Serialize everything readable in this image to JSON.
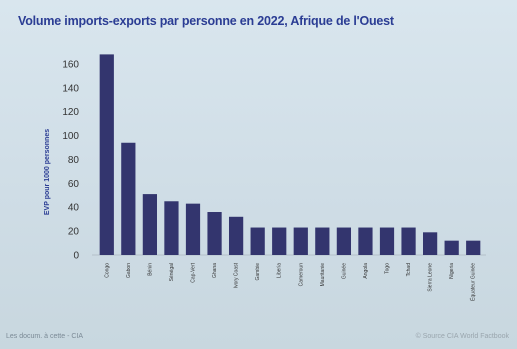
{
  "chart_data": {
    "type": "bar",
    "title": "Volume imports-exports par personne en 2022, Afrique de l'Ouest",
    "ylabel": "EVP pour 1000 personnes",
    "xlabel": "",
    "ylim": [
      0,
      170
    ],
    "yticks": [
      0,
      20,
      40,
      60,
      80,
      100,
      120,
      140,
      160
    ],
    "grid": false,
    "bar_color": "#33356e",
    "categories": [
      "Congo",
      "Gabon",
      "Bénin",
      "Sénégal",
      "Cap-Vert",
      "Ghana",
      "Ivory Coast",
      "Gambie",
      "Liberia",
      "Cameroun",
      "Mauritanie",
      "Guinée",
      "Angola",
      "Togo",
      "Tchad",
      "Sierra Leone",
      "Nigeria",
      "Équateur Guinée"
    ],
    "values": [
      168,
      94,
      51,
      45,
      43,
      36,
      32,
      23,
      23,
      23,
      23,
      23,
      23,
      23,
      23,
      19,
      12,
      12
    ]
  },
  "footer": {
    "left": "Les docum. à cette - CIA",
    "right": "© Source CIA World Factbook"
  }
}
